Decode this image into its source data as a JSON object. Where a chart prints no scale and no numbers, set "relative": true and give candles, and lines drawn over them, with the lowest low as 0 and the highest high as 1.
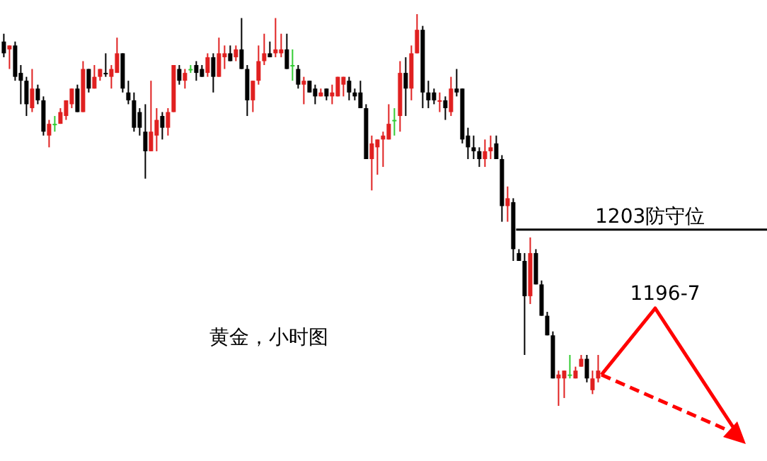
{
  "chart_data": {
    "type": "candlestick",
    "relative": true,
    "categories": [
      null,
      null,
      null,
      null,
      null,
      null,
      null,
      null,
      null,
      null,
      null,
      null,
      null,
      null,
      null,
      null,
      null,
      null,
      null,
      null,
      null,
      null,
      null,
      null,
      null,
      null,
      null,
      null,
      null,
      null,
      null,
      null,
      null,
      null,
      null,
      null,
      null,
      null,
      null,
      null,
      null,
      null,
      null,
      null,
      null,
      null,
      null,
      null,
      null,
      null,
      null,
      null,
      null,
      null,
      null,
      null,
      null,
      null,
      null,
      null,
      null,
      null,
      null,
      null,
      null,
      null,
      null,
      null,
      null,
      null,
      null,
      null,
      null,
      null,
      null,
      null,
      null,
      null,
      null,
      null,
      null,
      null,
      null,
      null,
      null,
      null,
      null,
      null,
      null,
      null,
      null,
      null,
      null,
      null,
      null,
      null,
      null,
      null,
      null,
      null,
      null,
      null,
      null,
      null,
      null,
      null
    ],
    "ohlc": [
      [
        0.93,
        0.95,
        0.89,
        0.9
      ],
      [
        0.91,
        0.92,
        0.86,
        0.92
      ],
      [
        0.92,
        0.93,
        0.83,
        0.84
      ],
      [
        0.85,
        0.87,
        0.77,
        0.83
      ],
      [
        0.83,
        0.84,
        0.74,
        0.77
      ],
      [
        0.76,
        0.86,
        0.75,
        0.81
      ],
      [
        0.81,
        0.82,
        0.77,
        0.78
      ],
      [
        0.78,
        0.79,
        0.69,
        0.7
      ],
      [
        0.69,
        0.73,
        0.66,
        0.72
      ],
      [
        0.72,
        0.74,
        0.7,
        0.72
      ],
      [
        0.72,
        0.76,
        0.72,
        0.75
      ],
      [
        0.74,
        0.78,
        0.73,
        0.78
      ],
      [
        0.77,
        0.81,
        0.76,
        0.81
      ],
      [
        0.81,
        0.82,
        0.75,
        0.75
      ],
      [
        0.75,
        0.88,
        0.75,
        0.86
      ],
      [
        0.86,
        0.86,
        0.8,
        0.81
      ],
      [
        0.81,
        0.87,
        0.81,
        0.84
      ],
      [
        0.84,
        0.86,
        0.83,
        0.86
      ],
      [
        0.85,
        0.9,
        0.84,
        0.85
      ],
      [
        0.84,
        0.87,
        0.81,
        0.86
      ],
      [
        0.85,
        0.94,
        0.85,
        0.9
      ],
      [
        0.9,
        0.9,
        0.8,
        0.81
      ],
      [
        0.8,
        0.83,
        0.77,
        0.78
      ],
      [
        0.78,
        0.8,
        0.7,
        0.71
      ],
      [
        0.75,
        0.76,
        0.69,
        0.71
      ],
      [
        0.7,
        0.77,
        0.58,
        0.65
      ],
      [
        0.65,
        0.83,
        0.65,
        0.7
      ],
      [
        0.69,
        0.76,
        0.65,
        0.73
      ],
      [
        0.74,
        0.75,
        0.68,
        0.71
      ],
      [
        0.71,
        0.76,
        0.69,
        0.75
      ],
      [
        0.75,
        0.87,
        0.75,
        0.87
      ],
      [
        0.86,
        0.87,
        0.82,
        0.83
      ],
      [
        0.83,
        0.86,
        0.81,
        0.85
      ],
      [
        0.86,
        0.87,
        0.85,
        0.86
      ],
      [
        0.87,
        0.88,
        0.83,
        0.85
      ],
      [
        0.86,
        0.87,
        0.84,
        0.84
      ],
      [
        0.85,
        0.9,
        0.84,
        0.89
      ],
      [
        0.89,
        0.9,
        0.8,
        0.84
      ],
      [
        0.84,
        0.94,
        0.84,
        0.9
      ],
      [
        0.89,
        0.92,
        0.86,
        0.9
      ],
      [
        0.9,
        0.92,
        0.88,
        0.88
      ],
      [
        0.89,
        0.92,
        0.88,
        0.91
      ],
      [
        0.91,
        0.99,
        0.86,
        0.86
      ],
      [
        0.86,
        0.87,
        0.74,
        0.78
      ],
      [
        0.78,
        0.83,
        0.75,
        0.83
      ],
      [
        0.83,
        0.92,
        0.82,
        0.88
      ],
      [
        0.88,
        0.95,
        0.87,
        0.9
      ],
      [
        0.9,
        0.93,
        0.89,
        0.89
      ],
      [
        0.9,
        0.99,
        0.89,
        0.91
      ],
      [
        0.9,
        0.95,
        0.89,
        0.91
      ],
      [
        0.91,
        0.95,
        0.86,
        0.86
      ],
      [
        0.87,
        0.91,
        0.83,
        0.87
      ],
      [
        0.86,
        0.87,
        0.81,
        0.82
      ],
      [
        0.82,
        0.84,
        0.77,
        0.83
      ],
      [
        0.83,
        0.83,
        0.8,
        0.8
      ],
      [
        0.81,
        0.82,
        0.77,
        0.79
      ],
      [
        0.79,
        0.81,
        0.79,
        0.8
      ],
      [
        0.81,
        0.81,
        0.78,
        0.79
      ],
      [
        0.79,
        0.82,
        0.77,
        0.8
      ],
      [
        0.79,
        0.84,
        0.79,
        0.84
      ],
      [
        0.82,
        0.84,
        0.79,
        0.84
      ],
      [
        0.83,
        0.84,
        0.78,
        0.8
      ],
      [
        0.8,
        0.81,
        0.78,
        0.79
      ],
      [
        0.8,
        0.83,
        0.76,
        0.76
      ],
      [
        0.76,
        0.77,
        0.63,
        0.63
      ],
      [
        0.63,
        0.69,
        0.55,
        0.67
      ],
      [
        0.66,
        0.68,
        0.59,
        0.68
      ],
      [
        0.68,
        0.7,
        0.61,
        0.69
      ],
      [
        0.68,
        0.77,
        0.68,
        0.72
      ],
      [
        0.73,
        0.76,
        0.69,
        0.73
      ],
      [
        0.74,
        0.88,
        0.7,
        0.85
      ],
      [
        0.85,
        0.89,
        0.74,
        0.81
      ],
      [
        0.81,
        0.92,
        0.78,
        0.9
      ],
      [
        0.9,
        1.0,
        0.9,
        0.96
      ],
      [
        0.96,
        0.97,
        0.76,
        0.8
      ],
      [
        0.8,
        0.83,
        0.76,
        0.78
      ],
      [
        0.8,
        0.81,
        0.77,
        0.78
      ],
      [
        0.78,
        0.8,
        0.75,
        0.78
      ],
      [
        0.78,
        0.79,
        0.73,
        0.76
      ],
      [
        0.75,
        0.84,
        0.74,
        0.81
      ],
      [
        0.81,
        0.86,
        0.79,
        0.8
      ],
      [
        0.81,
        0.81,
        0.67,
        0.68
      ],
      [
        0.69,
        0.71,
        0.63,
        0.66
      ],
      [
        0.66,
        0.69,
        0.63,
        0.65
      ],
      [
        0.65,
        0.66,
        0.61,
        0.63
      ],
      [
        0.63,
        0.68,
        0.61,
        0.65
      ],
      [
        0.65,
        0.69,
        0.63,
        0.66
      ],
      [
        0.67,
        0.69,
        0.63,
        0.63
      ],
      [
        0.63,
        0.64,
        0.47,
        0.51
      ],
      [
        0.51,
        0.56,
        0.47,
        0.53
      ],
      [
        0.52,
        0.53,
        0.37,
        0.4
      ],
      [
        0.39,
        0.4,
        0.37,
        0.37
      ],
      [
        0.37,
        0.39,
        0.13,
        0.28
      ],
      [
        0.28,
        0.43,
        0.26,
        0.39
      ],
      [
        0.39,
        0.4,
        0.31,
        0.31
      ],
      [
        0.31,
        0.32,
        0.23,
        0.23
      ],
      [
        0.23,
        0.24,
        0.18,
        0.18
      ],
      [
        0.18,
        0.19,
        0.07,
        0.07
      ],
      [
        0.07,
        0.09,
        0.0,
        0.08
      ],
      [
        0.07,
        0.09,
        0.02,
        0.09
      ],
      [
        0.08,
        0.13,
        0.07,
        0.08
      ],
      [
        0.07,
        0.1,
        0.07,
        0.09
      ],
      [
        0.1,
        0.13,
        0.1,
        0.12
      ],
      [
        0.12,
        0.13,
        0.06,
        0.07
      ],
      [
        0.04,
        0.09,
        0.03,
        0.07
      ],
      [
        0.07,
        0.13,
        0.06,
        0.09
      ]
    ],
    "colors": [
      "#000000",
      "#e02020",
      "#000000",
      "#000000",
      "#000000",
      "#e02020",
      "#000000",
      "#000000",
      "#e02020",
      "#33cc33",
      "#e02020",
      "#e02020",
      "#e02020",
      "#000000",
      "#e02020",
      "#000000",
      "#e02020",
      "#e02020",
      "#000000",
      "#e02020",
      "#e02020",
      "#000000",
      "#000000",
      "#000000",
      "#000000",
      "#000000",
      "#e02020",
      "#e02020",
      "#000000",
      "#e02020",
      "#e02020",
      "#000000",
      "#e02020",
      "#33cc33",
      "#000000",
      "#000000",
      "#e02020",
      "#000000",
      "#e02020",
      "#e02020",
      "#000000",
      "#e02020",
      "#000000",
      "#000000",
      "#e02020",
      "#e02020",
      "#e02020",
      "#000000",
      "#e02020",
      "#e02020",
      "#000000",
      "#33cc33",
      "#000000",
      "#e02020",
      "#000000",
      "#000000",
      "#e02020",
      "#000000",
      "#e02020",
      "#e02020",
      "#e02020",
      "#000000",
      "#000000",
      "#000000",
      "#000000",
      "#e02020",
      "#e02020",
      "#e02020",
      "#e02020",
      "#33cc33",
      "#e02020",
      "#000000",
      "#e02020",
      "#e02020",
      "#000000",
      "#000000",
      "#000000",
      "#e02020",
      "#000000",
      "#e02020",
      "#000000",
      "#000000",
      "#000000",
      "#000000",
      "#000000",
      "#e02020",
      "#e02020",
      "#000000",
      "#000000",
      "#e02020",
      "#000000",
      "#000000",
      "#000000",
      "#e02020",
      "#000000",
      "#000000",
      "#000000",
      "#000000",
      "#e02020",
      "#e02020",
      "#33cc33",
      "#e02020",
      "#e02020",
      "#000000",
      "#e02020",
      "#e02020"
    ],
    "ref_lines": [
      {
        "axis": "y",
        "value": 0.45,
        "label": "1203防守位",
        "color": "#000000"
      }
    ],
    "annotations": [
      "黄金，小时图",
      "1196-7"
    ]
  }
}
